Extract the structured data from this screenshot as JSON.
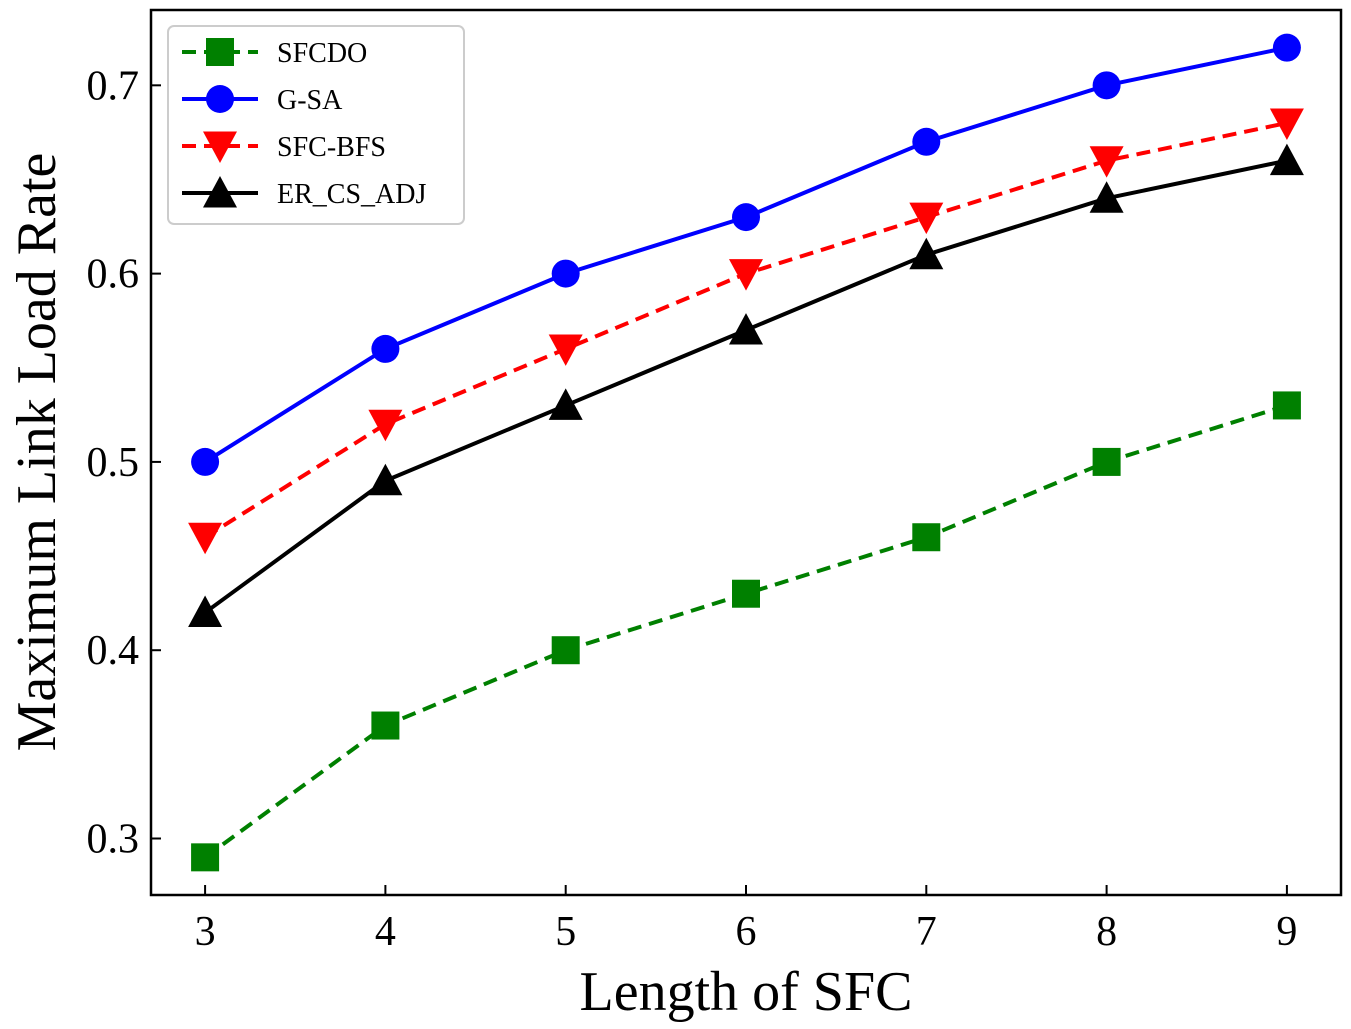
{
  "chart_data": {
    "type": "line",
    "title": "",
    "xlabel": "Length of SFC",
    "ylabel": "Maximum Link Load Rate",
    "x": [
      3,
      4,
      5,
      6,
      7,
      8,
      9
    ],
    "xlim": [
      2.7,
      9.3
    ],
    "ylim": [
      0.27,
      0.74
    ],
    "xticks": [
      "3",
      "4",
      "5",
      "6",
      "7",
      "8",
      "9"
    ],
    "yticks": [
      "0.3",
      "0.4",
      "0.5",
      "0.6",
      "0.7"
    ],
    "ytick_values": [
      0.3,
      0.4,
      0.5,
      0.6,
      0.7
    ],
    "legend_position": "top-left",
    "grid": false,
    "series": [
      {
        "name": "SFCDO",
        "color": "#008000",
        "dash": "dashed",
        "marker": "square",
        "values": [
          0.29,
          0.36,
          0.4,
          0.43,
          0.46,
          0.5,
          0.53
        ]
      },
      {
        "name": "G-SA",
        "color": "#0000ff",
        "dash": "solid",
        "marker": "circle",
        "values": [
          0.5,
          0.56,
          0.6,
          0.63,
          0.67,
          0.7,
          0.72
        ]
      },
      {
        "name": "SFC-BFS",
        "color": "#ff0000",
        "dash": "dashed",
        "marker": "triangle-down",
        "values": [
          0.46,
          0.52,
          0.56,
          0.6,
          0.63,
          0.66,
          0.68
        ]
      },
      {
        "name": "ER_CS_ADJ",
        "color": "#000000",
        "dash": "solid",
        "marker": "triangle-up",
        "values": [
          0.42,
          0.49,
          0.53,
          0.57,
          0.61,
          0.64,
          0.66
        ]
      }
    ]
  }
}
